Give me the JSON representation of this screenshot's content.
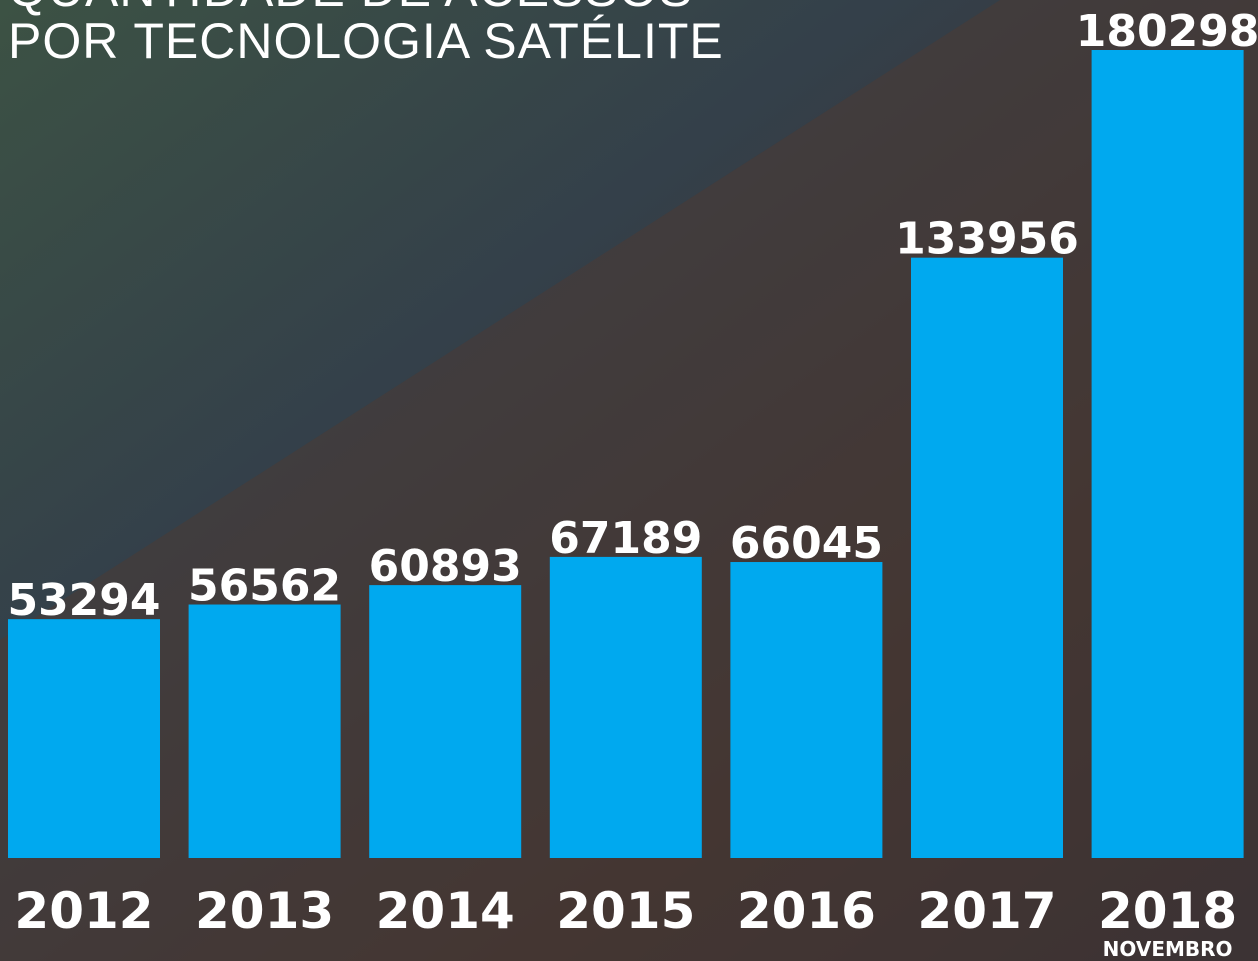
{
  "chart_data": {
    "type": "bar",
    "title_lines": [
      "QUANTIDADE DE ACESSOS",
      "POR TECNOLOGIA SATÉLITE"
    ],
    "categories": [
      "2012",
      "2013",
      "2014",
      "2015",
      "2016",
      "2017",
      "2018"
    ],
    "values": [
      53294,
      56562,
      60893,
      67189,
      66045,
      133956,
      180298
    ],
    "annotation": "NOVEMBRO",
    "color": "#00a9ef"
  }
}
